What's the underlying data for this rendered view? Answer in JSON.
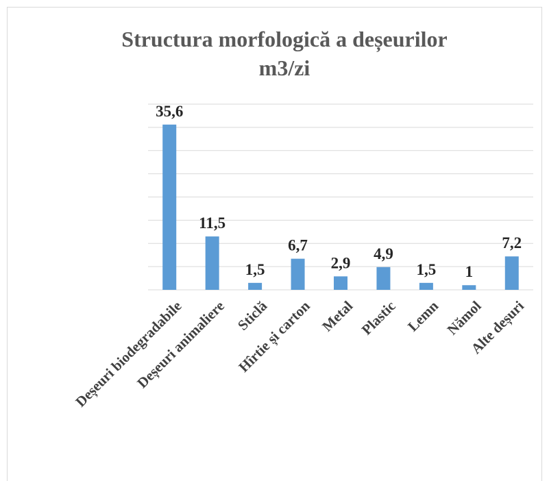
{
  "chart_data": {
    "type": "bar",
    "title": "Structura morfologică a deșeurilor",
    "subtitle": "m3/zi",
    "categories": [
      "Deșeuri biodegradabile",
      "Deșeuri animaliere",
      "Sticlă",
      "Hîrtie și carton",
      "Metal",
      "Plastic",
      "Lemn",
      "Nămol",
      "Alte deșuri"
    ],
    "values": [
      35.6,
      11.5,
      1.5,
      6.7,
      2.9,
      4.9,
      1.5,
      1,
      7.2
    ],
    "value_labels": [
      "35,6",
      "11,5",
      "1,5",
      "6,7",
      "2,9",
      "4,9",
      "1,5",
      "1",
      "7,2"
    ],
    "color": "#5b9bd5",
    "ylim": [
      0,
      40
    ],
    "yticks": [
      0,
      5,
      10,
      15,
      20,
      25,
      30,
      35,
      40
    ],
    "grid": true
  }
}
